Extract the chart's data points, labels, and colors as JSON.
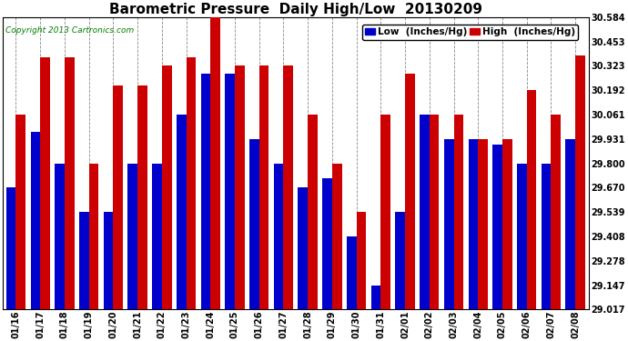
{
  "title": "Barometric Pressure  Daily High/Low  20130209",
  "copyright": "Copyright 2013 Cartronics.com",
  "legend_low": "Low  (Inches/Hg)",
  "legend_high": "High  (Inches/Hg)",
  "low_color": "#0000cc",
  "high_color": "#cc0000",
  "background_color": "#ffffff",
  "grid_color": "#888888",
  "ylim_min": 29.017,
  "ylim_max": 30.584,
  "yticks": [
    29.017,
    29.147,
    29.278,
    29.408,
    29.539,
    29.67,
    29.8,
    29.931,
    30.061,
    30.192,
    30.323,
    30.453,
    30.584
  ],
  "dates": [
    "01/16",
    "01/17",
    "01/18",
    "01/19",
    "01/20",
    "01/21",
    "01/22",
    "01/23",
    "01/24",
    "01/25",
    "01/26",
    "01/27",
    "01/28",
    "01/29",
    "01/30",
    "01/31",
    "02/01",
    "02/02",
    "02/03",
    "02/04",
    "02/05",
    "02/06",
    "02/07",
    "02/08"
  ],
  "high_values": [
    30.061,
    30.37,
    30.37,
    29.8,
    30.22,
    30.22,
    30.323,
    30.37,
    30.584,
    30.323,
    30.323,
    30.323,
    30.061,
    29.8,
    29.539,
    30.061,
    30.28,
    30.061,
    30.061,
    29.931,
    29.931,
    30.192,
    30.061,
    30.38
  ],
  "low_values": [
    29.67,
    29.97,
    29.8,
    29.539,
    29.539,
    29.8,
    29.8,
    30.061,
    30.28,
    30.28,
    29.931,
    29.8,
    29.67,
    29.72,
    29.408,
    29.147,
    29.539,
    30.061,
    29.931,
    29.931,
    29.9,
    29.8,
    29.8,
    29.931
  ],
  "bar_width": 0.4,
  "title_fontsize": 11,
  "tick_fontsize": 7,
  "legend_fontsize": 7.5
}
